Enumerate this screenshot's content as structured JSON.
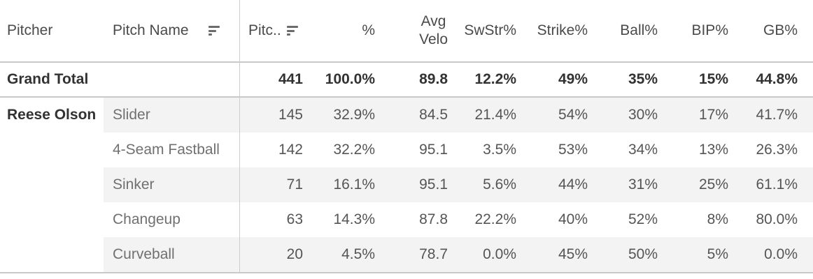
{
  "colors": {
    "banding_row_bg": "#f3f3f3",
    "strong_border": "#c9c9c9",
    "column_divider": "#cccccc",
    "header_text": "#4a4a4a",
    "dark_text": "#323232",
    "value_text": "#555555",
    "pitch_name_text": "#707070",
    "sort_icon": "#6b6b6b"
  },
  "header": {
    "pitcher": "Pitcher",
    "pitch_name": "Pitch Name",
    "pitches_truncated": "Pitc..",
    "pct": "%",
    "avg_velo_line1": "Avg",
    "avg_velo_line2": "Velo",
    "swstr": "SwStr%",
    "strike": "Strike%",
    "ball": "Ball%",
    "bip": "BIP%",
    "gb": "GB%"
  },
  "chart_data": {
    "type": "table",
    "columns": [
      "Pitcher",
      "Pitch Name",
      "Pitches",
      "%",
      "Avg Velo",
      "SwStr%",
      "Strike%",
      "Ball%",
      "BIP%",
      "GB%"
    ],
    "rows": [
      [
        "Grand Total",
        "",
        "441",
        "100.0%",
        "89.8",
        "12.2%",
        "49%",
        "35%",
        "15%",
        "44.8%"
      ],
      [
        "Reese Olson",
        "Slider",
        "145",
        "32.9%",
        "84.5",
        "21.4%",
        "54%",
        "30%",
        "17%",
        "41.7%"
      ],
      [
        "",
        "4-Seam Fastball",
        "142",
        "32.2%",
        "95.1",
        "3.5%",
        "53%",
        "34%",
        "13%",
        "26.3%"
      ],
      [
        "",
        "Sinker",
        "71",
        "16.1%",
        "95.1",
        "5.6%",
        "44%",
        "31%",
        "25%",
        "61.1%"
      ],
      [
        "",
        "Changeup",
        "63",
        "14.3%",
        "87.8",
        "22.2%",
        "40%",
        "52%",
        "8%",
        "80.0%"
      ],
      [
        "",
        "Curveball",
        "20",
        "4.5%",
        "78.7",
        "0.0%",
        "45%",
        "50%",
        "5%",
        "0.0%"
      ]
    ],
    "layout": {
      "sorted_columns": [
        "Pitch Name",
        "Pitches"
      ],
      "sort_direction": "descending",
      "row_banding": true,
      "totals_position": "top"
    }
  }
}
